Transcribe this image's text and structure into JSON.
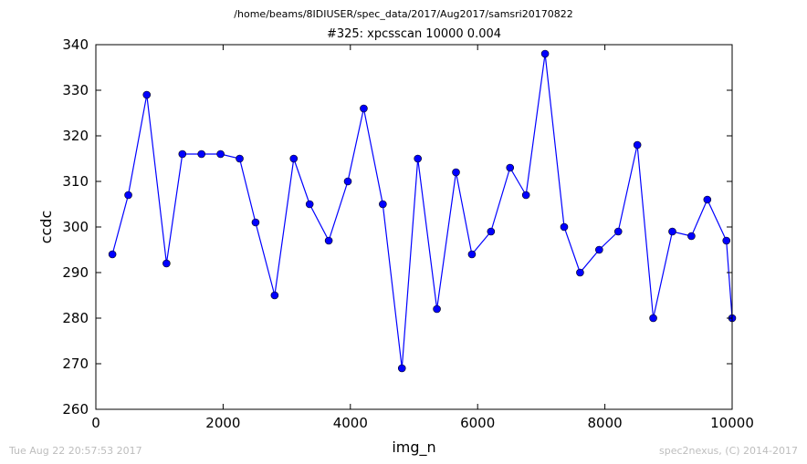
{
  "header": {
    "path": "/home/beams/8IDIUSER/spec_data/2017/Aug2017/samsri20170822"
  },
  "footer": {
    "timestamp": "Tue Aug 22 20:57:53 2017",
    "credit": "spec2nexus, (C) 2014-2017"
  },
  "chart_data": {
    "type": "line",
    "title": "#325: xpcsscan 10000 0.004",
    "xlabel": "img_n",
    "ylabel": "ccdc",
    "xlim": [
      0,
      10000
    ],
    "ylim": [
      260,
      340
    ],
    "xticks": [
      0,
      2000,
      4000,
      6000,
      8000,
      10000
    ],
    "yticks": [
      260,
      270,
      280,
      290,
      300,
      310,
      320,
      330,
      340
    ],
    "grid": false,
    "colors": {
      "line": "#0000ff",
      "marker": "#0000ff"
    },
    "series": [
      {
        "x": [
          260,
          510,
          800,
          1110,
          1360,
          1660,
          1960,
          2260,
          2510,
          2810,
          3110,
          3360,
          3660,
          3960,
          4210,
          4510,
          4810,
          5060,
          5360,
          5660,
          5910,
          6210,
          6510,
          6760,
          7060,
          7360,
          7610,
          7910,
          8210,
          8510,
          8760,
          9060,
          9360,
          9610,
          9910,
          10000
        ],
        "y": [
          294,
          307,
          329,
          292,
          316,
          316,
          316,
          315,
          301,
          285,
          315,
          305,
          297,
          310,
          326,
          305,
          269,
          315,
          282,
          312,
          294,
          299,
          313,
          307,
          338,
          300,
          290,
          295,
          299,
          318,
          280,
          299,
          298,
          306,
          297,
          280
        ]
      }
    ]
  }
}
